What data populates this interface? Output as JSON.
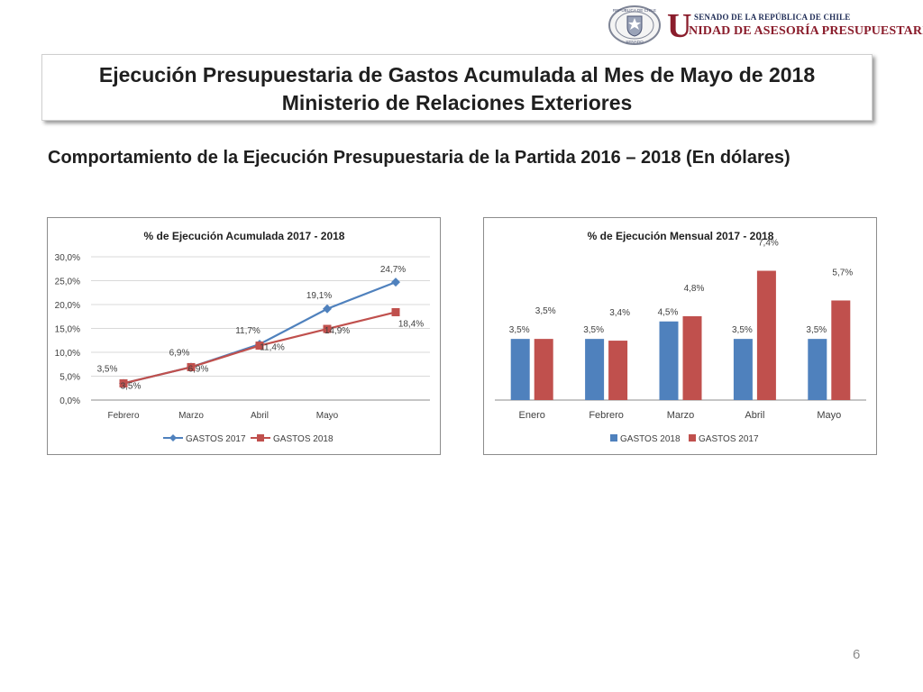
{
  "header": {
    "seal_text": [
      "REPÚBLICA DE CHILE",
      "SENADO"
    ],
    "org_initial": "U",
    "org_top": "SENADO DE LA REPÚBLICA DE CHILE",
    "org_bottom": "NIDAD DE ASESORÍA PRESUPUESTARIA"
  },
  "slide": {
    "title_line1": "Ejecución Presupuestaria de Gastos Acumulada al Mes de Mayo de 2018",
    "title_line2": "Ministerio de Relaciones Exteriores",
    "subtitle": "Comportamiento de la Ejecución Presupuestaria de la Partida 2016 – 2018 (En dólares)",
    "page_number": "6"
  },
  "colors": {
    "blue": "#4f81bd",
    "red": "#c0504d",
    "grid": "#d9d9d9",
    "text": "#404040"
  },
  "chart_data": [
    {
      "type": "line",
      "title": "% de Ejecución Acumulada 2017 - 2018",
      "categories": [
        "Febrero",
        "Marzo",
        "Abril",
        "Mayo",
        ""
      ],
      "yticks": [
        "0,0%",
        "5,0%",
        "10,0%",
        "15,0%",
        "20,0%",
        "25,0%",
        "30,0%"
      ],
      "ylim": [
        0,
        30
      ],
      "legend_position": "bottom",
      "series": [
        {
          "name": "GASTOS 2017",
          "marker": "diamond",
          "color": "#4f81bd",
          "values": [
            3.5,
            6.9,
            11.7,
            19.1,
            24.7
          ],
          "labels": [
            "3,5%",
            "6,9%",
            "11,7%",
            "19,1%",
            "24,7%"
          ]
        },
        {
          "name": "GASTOS 2018",
          "marker": "square",
          "color": "#c0504d",
          "values": [
            3.5,
            6.9,
            11.4,
            14.9,
            18.4
          ],
          "labels": [
            "3,5%",
            "6,9%",
            "11,4%",
            "14,9%",
            "18,4%"
          ]
        }
      ]
    },
    {
      "type": "bar",
      "title": "% de Ejecución Mensual 2017 - 2018",
      "categories": [
        "Enero",
        "Febrero",
        "Marzo",
        "Abril",
        "Mayo"
      ],
      "ylim": [
        0,
        8.2
      ],
      "legend_position": "bottom",
      "series": [
        {
          "name": "GASTOS 2018",
          "color": "#4f81bd",
          "values": [
            3.5,
            3.5,
            4.5,
            3.5,
            3.5
          ],
          "labels": [
            "3,5%",
            "3,5%",
            "4,5%",
            "3,5%",
            "3,5%"
          ]
        },
        {
          "name": "GASTOS 2017",
          "color": "#c0504d",
          "values": [
            3.5,
            3.4,
            4.8,
            7.4,
            5.7
          ],
          "labels": [
            "3,5%",
            "3,4%",
            "4,8%",
            "7,4%",
            "5,7%"
          ]
        }
      ]
    }
  ]
}
